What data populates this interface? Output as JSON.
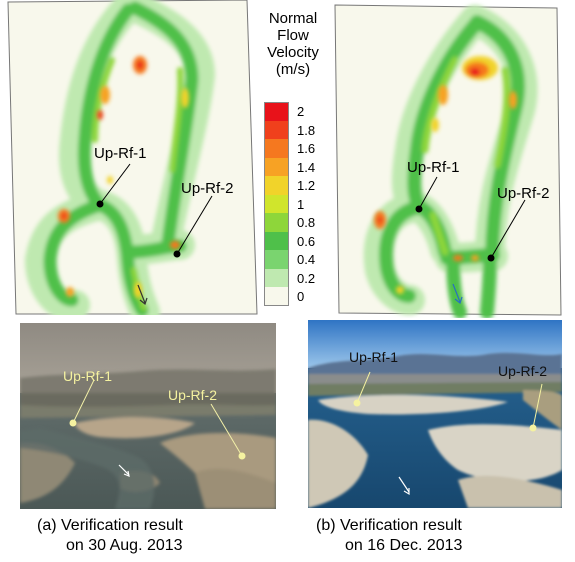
{
  "legend": {
    "title_lines": [
      "Normal",
      "Flow",
      "Velocity",
      "(m/s)"
    ],
    "ticks": [
      {
        "value": "2",
        "color": "#e8121a"
      },
      {
        "value": "1.8",
        "color": "#f0401c"
      },
      {
        "value": "1.6",
        "color": "#f5781f"
      },
      {
        "value": "1.4",
        "color": "#f7a224"
      },
      {
        "value": "1.2",
        "color": "#f1d32a"
      },
      {
        "value": "1",
        "color": "#d0e52c"
      },
      {
        "value": "0.8",
        "color": "#8ed63a"
      },
      {
        "value": "0.6",
        "color": "#4fc04a"
      },
      {
        "value": "0.4",
        "color": "#7ad46f"
      },
      {
        "value": "0.2",
        "color": "#bfe9b0"
      },
      {
        "value": "0",
        "color": "#f8f8ec"
      }
    ]
  },
  "panel_a": {
    "point1": "Up-Rf-1",
    "point2": "Up-Rf-2",
    "photo_point1": "Up-Rf-1",
    "photo_point2": "Up-Rf-2",
    "caption_line1": "(a) Verification result",
    "caption_line2": "on 30 Aug. 2013"
  },
  "panel_b": {
    "point1": "Up-Rf-1",
    "point2": "Up-Rf-2",
    "photo_point1": "Up-Rf-1",
    "photo_point2": "Up-Rf-2",
    "caption_line1": "(b) Verification result",
    "caption_line2": "on 16 Dec. 2013"
  }
}
